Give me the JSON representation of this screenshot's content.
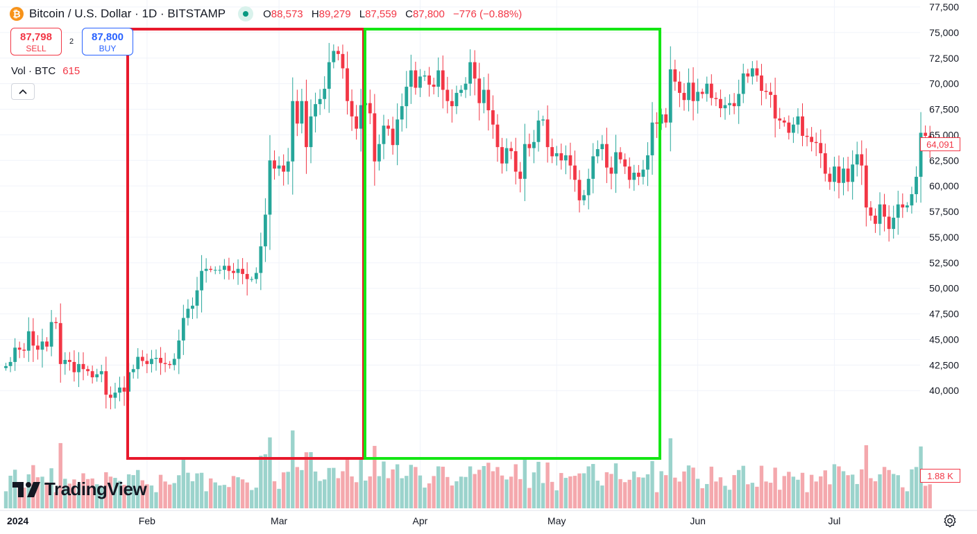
{
  "header": {
    "title": "Bitcoin / U.S. Dollar · 1D · BITSTAMP",
    "icon": "bitcoin-icon",
    "ohlc": {
      "o_label": "O",
      "o": "88,573",
      "h_label": "H",
      "h": "89,279",
      "l_label": "L",
      "l": "87,559",
      "c_label": "C",
      "c": "87,800",
      "change": "−776 (−0.88%)"
    }
  },
  "trade": {
    "sell_price": "87,798",
    "sell_label": "SELL",
    "spread": "2",
    "buy_price": "87,800",
    "buy_label": "BUY"
  },
  "volume_legend": {
    "label": "Vol · BTC",
    "value": "615"
  },
  "logo": {
    "text": "TradingView",
    "icon": "tradingview-logo-icon"
  },
  "price_tag": "64,091",
  "volume_tag": "1.88 K",
  "colors": {
    "up": "#26a69a",
    "down": "#f23645",
    "vol_up": "#9bd3cc",
    "vol_down": "#f4a8ad",
    "red_box": "#e8192c",
    "green_box": "#14e614"
  },
  "chart_data": {
    "type": "candlestick",
    "title": "",
    "ylim": [
      35000,
      77500
    ],
    "y_ticks": [
      "77,500",
      "75,000",
      "72,500",
      "70,000",
      "67,500",
      "65,000",
      "62,500",
      "60,000",
      "57,500",
      "55,000",
      "52,500",
      "50,000",
      "47,500",
      "45,000",
      "42,500",
      "40,000"
    ],
    "x_ticks": [
      "2024",
      "Feb",
      "Mar",
      "Apr",
      "May",
      "Jun",
      "Jul"
    ],
    "start_date": "2024-01-01",
    "grid": true,
    "closes": [
      42400,
      42800,
      44200,
      44000,
      43900,
      45800,
      44400,
      44000,
      44800,
      44300,
      46700,
      46600,
      42600,
      43000,
      42800,
      41800,
      42600,
      42100,
      41900,
      41300,
      41600,
      41900,
      39600,
      39300,
      39800,
      40300,
      39900,
      41800,
      42100,
      43300,
      42900,
      42600,
      43100,
      43200,
      42700,
      42600,
      42500,
      43100,
      44900,
      47100,
      48000,
      48300,
      49800,
      51700,
      51900,
      51800,
      51800,
      51800,
      52200,
      51700,
      51500,
      51900,
      51400,
      50900,
      50900,
      51500,
      54100,
      57200,
      62500,
      61700,
      62000,
      61400,
      62400,
      68300,
      66100,
      68300,
      63800,
      66800,
      68000,
      68500,
      69500,
      72100,
      73200,
      72900,
      71500,
      68300,
      66800,
      65600,
      67900,
      68100,
      67100,
      62400,
      64100,
      65900,
      65600,
      64000,
      66500,
      67800,
      69700,
      71300,
      69600,
      70700,
      70800,
      69900,
      69700,
      71300,
      69400,
      68300,
      67800,
      69100,
      69400,
      70000,
      72100,
      70500,
      68100,
      69400,
      67400,
      66000,
      63800,
      62200,
      63700,
      63400,
      61400,
      60700,
      64100,
      63700,
      64300,
      66400,
      66500,
      63800,
      62900,
      63200,
      62500,
      63000,
      62000,
      60600,
      58600,
      59100,
      60700,
      62900,
      63600,
      64100,
      61800,
      61200,
      63300,
      62600,
      61900,
      60600,
      61300,
      60900,
      61600,
      63000,
      66200,
      66100,
      67000,
      66200,
      71400,
      70200,
      69100,
      68400,
      70100,
      68300,
      69200,
      69000,
      70000,
      68600,
      68500,
      67600,
      67900,
      68100,
      67800,
      69000,
      71000,
      70700,
      71500,
      70800,
      69300,
      69200,
      68900,
      66600,
      66400,
      66200,
      65200,
      66000,
      66800,
      64900,
      64800,
      64300,
      64200,
      63200,
      61200,
      60400,
      61900,
      60300,
      61700,
      60400,
      62100,
      63100,
      62000,
      57900,
      57100,
      56300,
      58200,
      57000,
      55800,
      56900,
      58200,
      57900,
      58100,
      59200,
      60900,
      65200,
      64900,
      64100
    ]
  }
}
